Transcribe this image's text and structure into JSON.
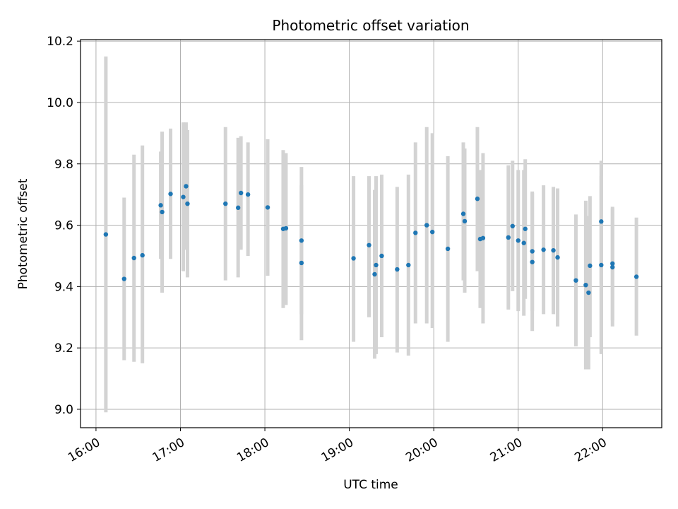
{
  "chart_data": {
    "type": "scatter",
    "title": "Photometric offset variation",
    "xlabel": "UTC time",
    "ylabel": "Photometric offset",
    "x_ticks": [
      "16:00",
      "17:00",
      "18:00",
      "19:00",
      "20:00",
      "21:00",
      "22:00"
    ],
    "y_ticks": [
      "9.0",
      "9.2",
      "9.4",
      "9.6",
      "9.8",
      "10.0",
      "10.2"
    ],
    "xlim": [
      "15:49",
      "22:42"
    ],
    "ylim": [
      8.94,
      10.205
    ],
    "grid": true,
    "colors": {
      "point": "#1f77b4",
      "errorbar": "#d3d3d3",
      "grid": "#b0b0b0"
    },
    "points": [
      {
        "t": "16:07",
        "y": 9.57,
        "lo": 8.99,
        "hi": 10.15
      },
      {
        "t": "16:20",
        "y": 9.425,
        "lo": 9.16,
        "hi": 9.69
      },
      {
        "t": "16:27",
        "y": 9.493,
        "lo": 9.155,
        "hi": 9.83
      },
      {
        "t": "16:33",
        "y": 9.502,
        "lo": 9.15,
        "hi": 9.86
      },
      {
        "t": "16:46",
        "y": 9.665,
        "lo": 9.49,
        "hi": 9.84
      },
      {
        "t": "16:47",
        "y": 9.643,
        "lo": 9.38,
        "hi": 9.905
      },
      {
        "t": "16:53",
        "y": 9.702,
        "lo": 9.49,
        "hi": 9.915
      },
      {
        "t": "17:02",
        "y": 9.692,
        "lo": 9.45,
        "hi": 9.935
      },
      {
        "t": "17:04",
        "y": 9.727,
        "lo": 9.52,
        "hi": 9.935
      },
      {
        "t": "17:05",
        "y": 9.67,
        "lo": 9.43,
        "hi": 9.91
      },
      {
        "t": "17:32",
        "y": 9.67,
        "lo": 9.42,
        "hi": 9.92
      },
      {
        "t": "17:41",
        "y": 9.657,
        "lo": 9.43,
        "hi": 9.885
      },
      {
        "t": "17:43",
        "y": 9.705,
        "lo": 9.52,
        "hi": 9.89
      },
      {
        "t": "17:48",
        "y": 9.7,
        "lo": 9.5,
        "hi": 9.87
      },
      {
        "t": "18:02",
        "y": 9.658,
        "lo": 9.435,
        "hi": 9.88
      },
      {
        "t": "18:13",
        "y": 9.588,
        "lo": 9.33,
        "hi": 9.845
      },
      {
        "t": "18:15",
        "y": 9.59,
        "lo": 9.34,
        "hi": 9.835
      },
      {
        "t": "18:26",
        "y": 9.55,
        "lo": 9.31,
        "hi": 9.79
      },
      {
        "t": "18:26",
        "y": 9.477,
        "lo": 9.225,
        "hi": 9.73
      },
      {
        "t": "19:03",
        "y": 9.492,
        "lo": 9.22,
        "hi": 9.76
      },
      {
        "t": "19:14",
        "y": 9.535,
        "lo": 9.3,
        "hi": 9.76
      },
      {
        "t": "19:18",
        "y": 9.44,
        "lo": 9.165,
        "hi": 9.715
      },
      {
        "t": "19:19",
        "y": 9.47,
        "lo": 9.18,
        "hi": 9.76
      },
      {
        "t": "19:23",
        "y": 9.5,
        "lo": 9.235,
        "hi": 9.765
      },
      {
        "t": "19:34",
        "y": 9.456,
        "lo": 9.185,
        "hi": 9.725
      },
      {
        "t": "19:42",
        "y": 9.47,
        "lo": 9.175,
        "hi": 9.765
      },
      {
        "t": "19:47",
        "y": 9.575,
        "lo": 9.28,
        "hi": 9.87
      },
      {
        "t": "19:55",
        "y": 9.6,
        "lo": 9.28,
        "hi": 9.92
      },
      {
        "t": "19:59",
        "y": 9.578,
        "lo": 9.265,
        "hi": 9.9
      },
      {
        "t": "20:10",
        "y": 9.523,
        "lo": 9.22,
        "hi": 9.825
      },
      {
        "t": "20:21",
        "y": 9.637,
        "lo": 9.42,
        "hi": 9.87
      },
      {
        "t": "20:22",
        "y": 9.613,
        "lo": 9.38,
        "hi": 9.85
      },
      {
        "t": "20:31",
        "y": 9.686,
        "lo": 9.45,
        "hi": 9.92
      },
      {
        "t": "20:33",
        "y": 9.555,
        "lo": 9.33,
        "hi": 9.78
      },
      {
        "t": "20:35",
        "y": 9.558,
        "lo": 9.28,
        "hi": 9.835
      },
      {
        "t": "20:53",
        "y": 9.56,
        "lo": 9.325,
        "hi": 9.795
      },
      {
        "t": "20:56",
        "y": 9.597,
        "lo": 9.385,
        "hi": 9.81
      },
      {
        "t": "21:00",
        "y": 9.55,
        "lo": 9.32,
        "hi": 9.78
      },
      {
        "t": "21:04",
        "y": 9.542,
        "lo": 9.305,
        "hi": 9.78
      },
      {
        "t": "21:05",
        "y": 9.588,
        "lo": 9.36,
        "hi": 9.815
      },
      {
        "t": "21:10",
        "y": 9.48,
        "lo": 9.255,
        "hi": 9.705
      },
      {
        "t": "21:10",
        "y": 9.515,
        "lo": 9.32,
        "hi": 9.71
      },
      {
        "t": "21:18",
        "y": 9.52,
        "lo": 9.31,
        "hi": 9.73
      },
      {
        "t": "21:25",
        "y": 9.518,
        "lo": 9.31,
        "hi": 9.725
      },
      {
        "t": "21:28",
        "y": 9.495,
        "lo": 9.27,
        "hi": 9.72
      },
      {
        "t": "21:41",
        "y": 9.42,
        "lo": 9.205,
        "hi": 9.635
      },
      {
        "t": "21:48",
        "y": 9.405,
        "lo": 9.13,
        "hi": 9.68
      },
      {
        "t": "21:50",
        "y": 9.38,
        "lo": 9.13,
        "hi": 9.63
      },
      {
        "t": "21:51",
        "y": 9.468,
        "lo": 9.235,
        "hi": 9.695
      },
      {
        "t": "21:59",
        "y": 9.612,
        "lo": 9.41,
        "hi": 9.81
      },
      {
        "t": "21:59",
        "y": 9.47,
        "lo": 9.18,
        "hi": 9.76
      },
      {
        "t": "22:07",
        "y": 9.475,
        "lo": 9.29,
        "hi": 9.66
      },
      {
        "t": "22:07",
        "y": 9.463,
        "lo": 9.27,
        "hi": 9.655
      },
      {
        "t": "22:24",
        "y": 9.432,
        "lo": 9.24,
        "hi": 9.625
      }
    ]
  }
}
